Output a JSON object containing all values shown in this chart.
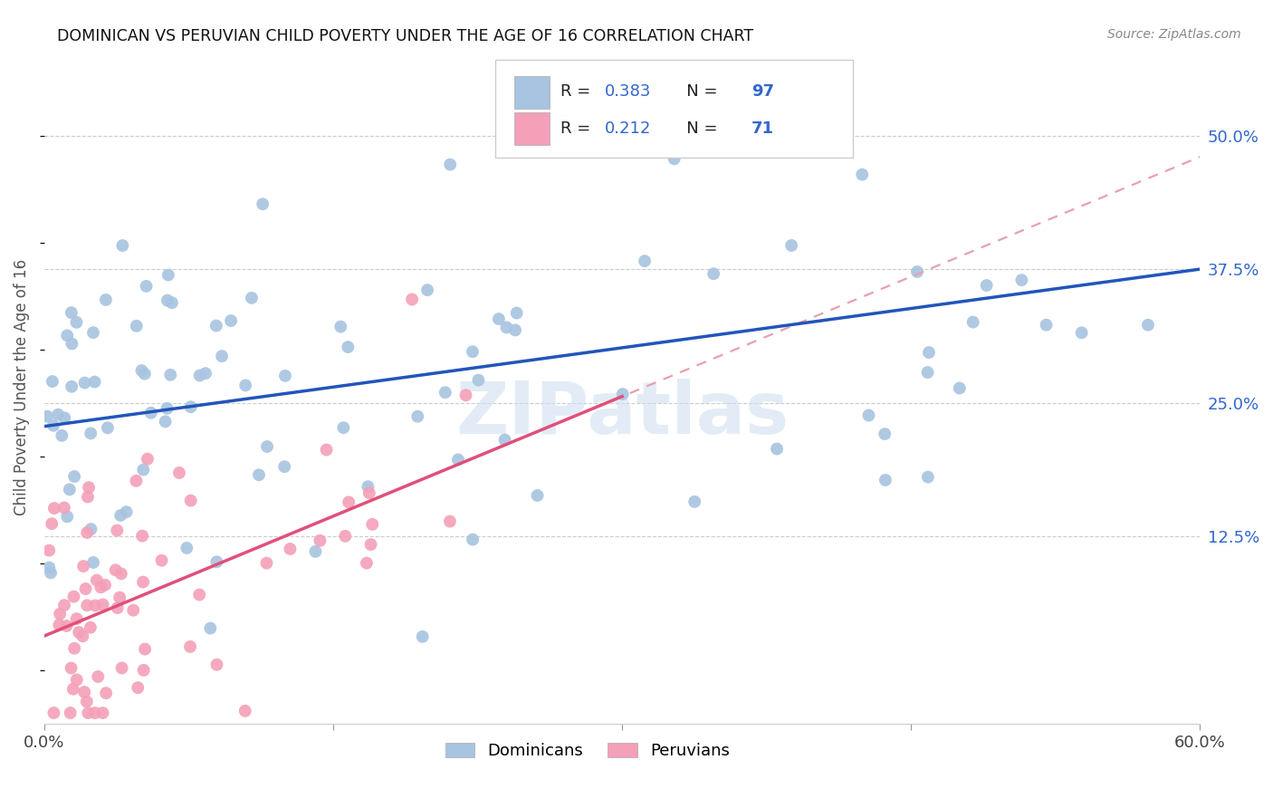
{
  "title": "DOMINICAN VS PERUVIAN CHILD POVERTY UNDER THE AGE OF 16 CORRELATION CHART",
  "source": "Source: ZipAtlas.com",
  "ylabel": "Child Poverty Under the Age of 16",
  "yticks": [
    "12.5%",
    "25.0%",
    "37.5%",
    "50.0%"
  ],
  "ytick_vals": [
    0.125,
    0.25,
    0.375,
    0.5
  ],
  "xlim": [
    0.0,
    0.6
  ],
  "ylim": [
    -0.05,
    0.58
  ],
  "dominican_color": "#a8c4e0",
  "peruvian_color": "#f4a0b8",
  "trendline_dominican_color": "#2255bb",
  "trendline_peruvian_color": "#e0507a",
  "trendline_dashed_color": "#e8a0b0",
  "watermark": "ZIPatlas",
  "legend_label_dominican": "Dominicans",
  "legend_label_peruvian": "Peruvians",
  "N_dominican": 97,
  "N_peruvian": 71,
  "R_dominican": 0.383,
  "R_peruvian": 0.212,
  "dominican_seed": 42,
  "peruvian_seed": 123,
  "dom_trendline_x0": 0.0,
  "dom_trendline_y0": 0.228,
  "dom_trendline_x1": 0.6,
  "dom_trendline_y1": 0.375,
  "per_trendline_x0": 0.0,
  "per_trendline_y0": 0.032,
  "per_trendline_x1": 0.6,
  "per_trendline_y1": 0.48
}
